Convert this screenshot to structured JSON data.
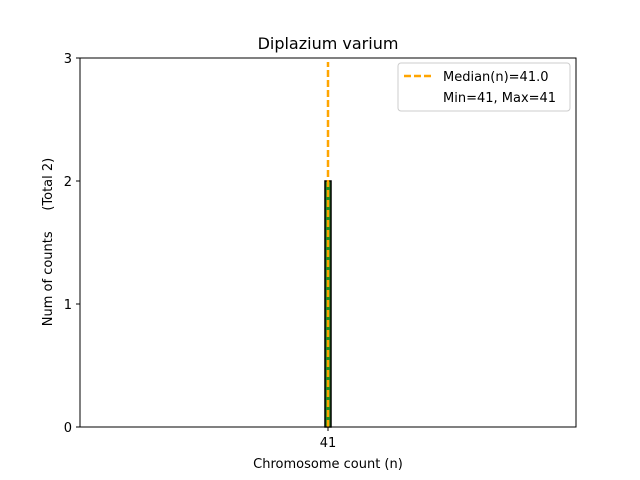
{
  "chart_data": {
    "type": "bar",
    "title": "Diplazium varium",
    "xlabel": "Chromosome count (n)",
    "ylabel": "Num of counts     (Total 2)",
    "categories": [
      41
    ],
    "values": [
      2
    ],
    "ylim": [
      0,
      3
    ],
    "yticks": [
      0,
      1,
      2,
      3
    ],
    "xticks": [
      41
    ],
    "median": 41.0,
    "grid": false,
    "legend_position": "top-right",
    "legend": [
      {
        "label": "Median(n)=41.0",
        "style": "dashed-line",
        "color": "#FFA500"
      },
      {
        "label": "Min=41, Max=41",
        "style": "none"
      }
    ],
    "colors": {
      "bar_fill": "#228B22",
      "bar_edge": "#000000",
      "median_line": "#FFA500"
    }
  }
}
